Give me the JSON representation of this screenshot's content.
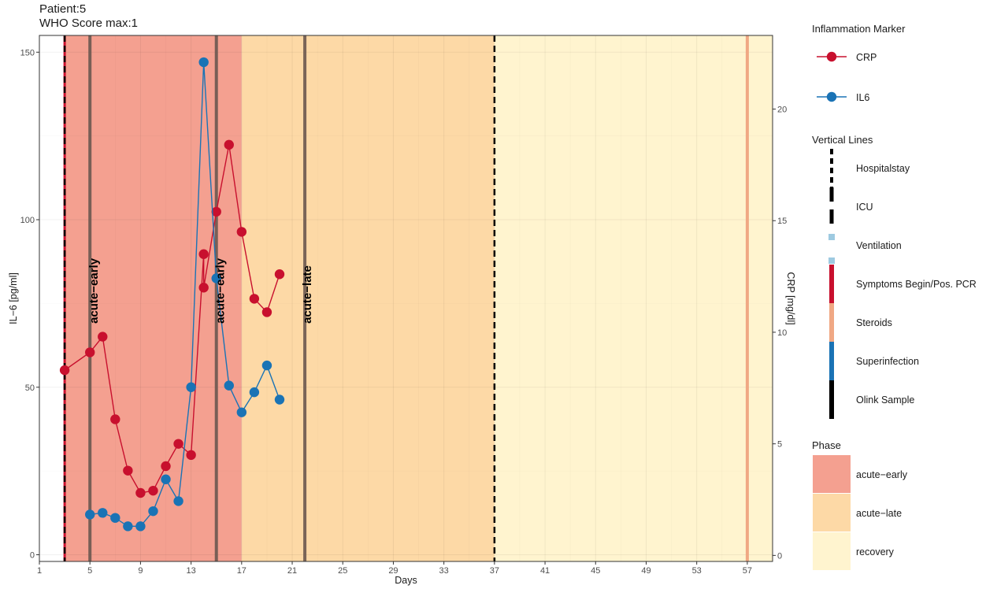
{
  "header": {
    "title_line1": "Patient:5",
    "title_line2": "WHO Score max:1"
  },
  "chart_data": {
    "type": "line",
    "xlabel": "Days",
    "ylabel_left": "IL−6 [pg/ml]",
    "ylabel_right": "CRP [mg/dl]",
    "xlim": [
      1,
      59
    ],
    "ylim_left": [
      -2,
      155
    ],
    "ylim_right": [
      -0.27,
      23.3
    ],
    "x_ticks": [
      1,
      5,
      9,
      13,
      17,
      21,
      25,
      29,
      33,
      37,
      41,
      45,
      49,
      53,
      57
    ],
    "y_ticks_left": [
      0,
      50,
      100,
      150
    ],
    "y_ticks_right": [
      0,
      5,
      10,
      15,
      20
    ],
    "grid": true,
    "phases": [
      {
        "name": "acute−early",
        "start": 3,
        "end": 17,
        "color": "#f4a090"
      },
      {
        "name": "acute−late",
        "start": 17,
        "end": 37,
        "color": "#fdd9a6"
      },
      {
        "name": "recovery",
        "start": 37,
        "end": 59,
        "color": "#fff4cf"
      }
    ],
    "phase_labels": [
      {
        "text": "acute−early",
        "x": 5.6,
        "y_left": 69
      },
      {
        "text": "acute−early",
        "x": 15.6,
        "y_left": 69
      },
      {
        "text": "acute−late",
        "x": 22.5,
        "y_left": 69
      }
    ],
    "vertical_lines": [
      {
        "type": "Symptoms Begin/Pos. PCR",
        "x": 3,
        "color": "#c8102e",
        "style": "solid"
      },
      {
        "type": "Hospitalstay",
        "x": 3,
        "color": "#000000",
        "style": "dashed"
      },
      {
        "type": "Hospitalstay",
        "x": 37,
        "color": "#000000",
        "style": "dashed"
      },
      {
        "type": "Olink Sample",
        "x": 5,
        "color": "#6b5850",
        "style": "solid"
      },
      {
        "type": "Olink Sample",
        "x": 15,
        "color": "#6b5850",
        "style": "solid"
      },
      {
        "type": "Olink Sample",
        "x": 22,
        "color": "#6b5850",
        "style": "solid"
      },
      {
        "type": "Steroids",
        "x": 57,
        "color": "#f0a884",
        "style": "solid"
      }
    ],
    "series": [
      {
        "name": "CRP",
        "axis": "right",
        "color": "#c8102e",
        "x": [
          3,
          5,
          6,
          7,
          8,
          9,
          10,
          11,
          12,
          13,
          14,
          14,
          15,
          16,
          17,
          18,
          19,
          20
        ],
        "y": [
          8.3,
          9.1,
          9.8,
          6.1,
          3.8,
          2.8,
          2.9,
          4.0,
          5.0,
          4.5,
          13.5,
          12.0,
          15.4,
          18.4,
          14.5,
          11.5,
          10.9,
          12.6
        ]
      },
      {
        "name": "IL6",
        "axis": "left",
        "color": "#1a73b5",
        "x": [
          5,
          6,
          7,
          8,
          9,
          10,
          11,
          12,
          13,
          14,
          15,
          16,
          17,
          18,
          19,
          20
        ],
        "y": [
          12,
          12.5,
          11,
          8.5,
          8.5,
          13,
          22.5,
          16,
          50,
          147,
          82.5,
          50.5,
          42.5,
          48.5,
          56.5,
          46.3
        ]
      }
    ]
  },
  "legend": {
    "marker_title": "Inflammation Marker",
    "markers": [
      {
        "label": "CRP",
        "color": "#c8102e"
      },
      {
        "label": "IL6",
        "color": "#1a73b5"
      }
    ],
    "lines_title": "Vertical Lines",
    "lines": [
      {
        "label": "Hospitalstay",
        "color": "#000000",
        "style": "dashed"
      },
      {
        "label": "ICU",
        "color": "#000000",
        "style": "longdash"
      },
      {
        "label": "Ventilation",
        "color": "#9ecae1",
        "style": "dashed"
      },
      {
        "label": "Symptoms Begin/Pos. PCR",
        "color": "#c8102e",
        "style": "solid"
      },
      {
        "label": "Steroids",
        "color": "#f0a884",
        "style": "solid"
      },
      {
        "label": "Superinfection",
        "color": "#1a73b5",
        "style": "solid"
      },
      {
        "label": "Olink Sample",
        "color": "#000000",
        "style": "solid"
      }
    ],
    "phase_title": "Phase",
    "phases": [
      {
        "label": "acute−early",
        "color": "#f4a090"
      },
      {
        "label": "acute−late",
        "color": "#fdd9a6"
      },
      {
        "label": "recovery",
        "color": "#fff4cf"
      }
    ]
  }
}
